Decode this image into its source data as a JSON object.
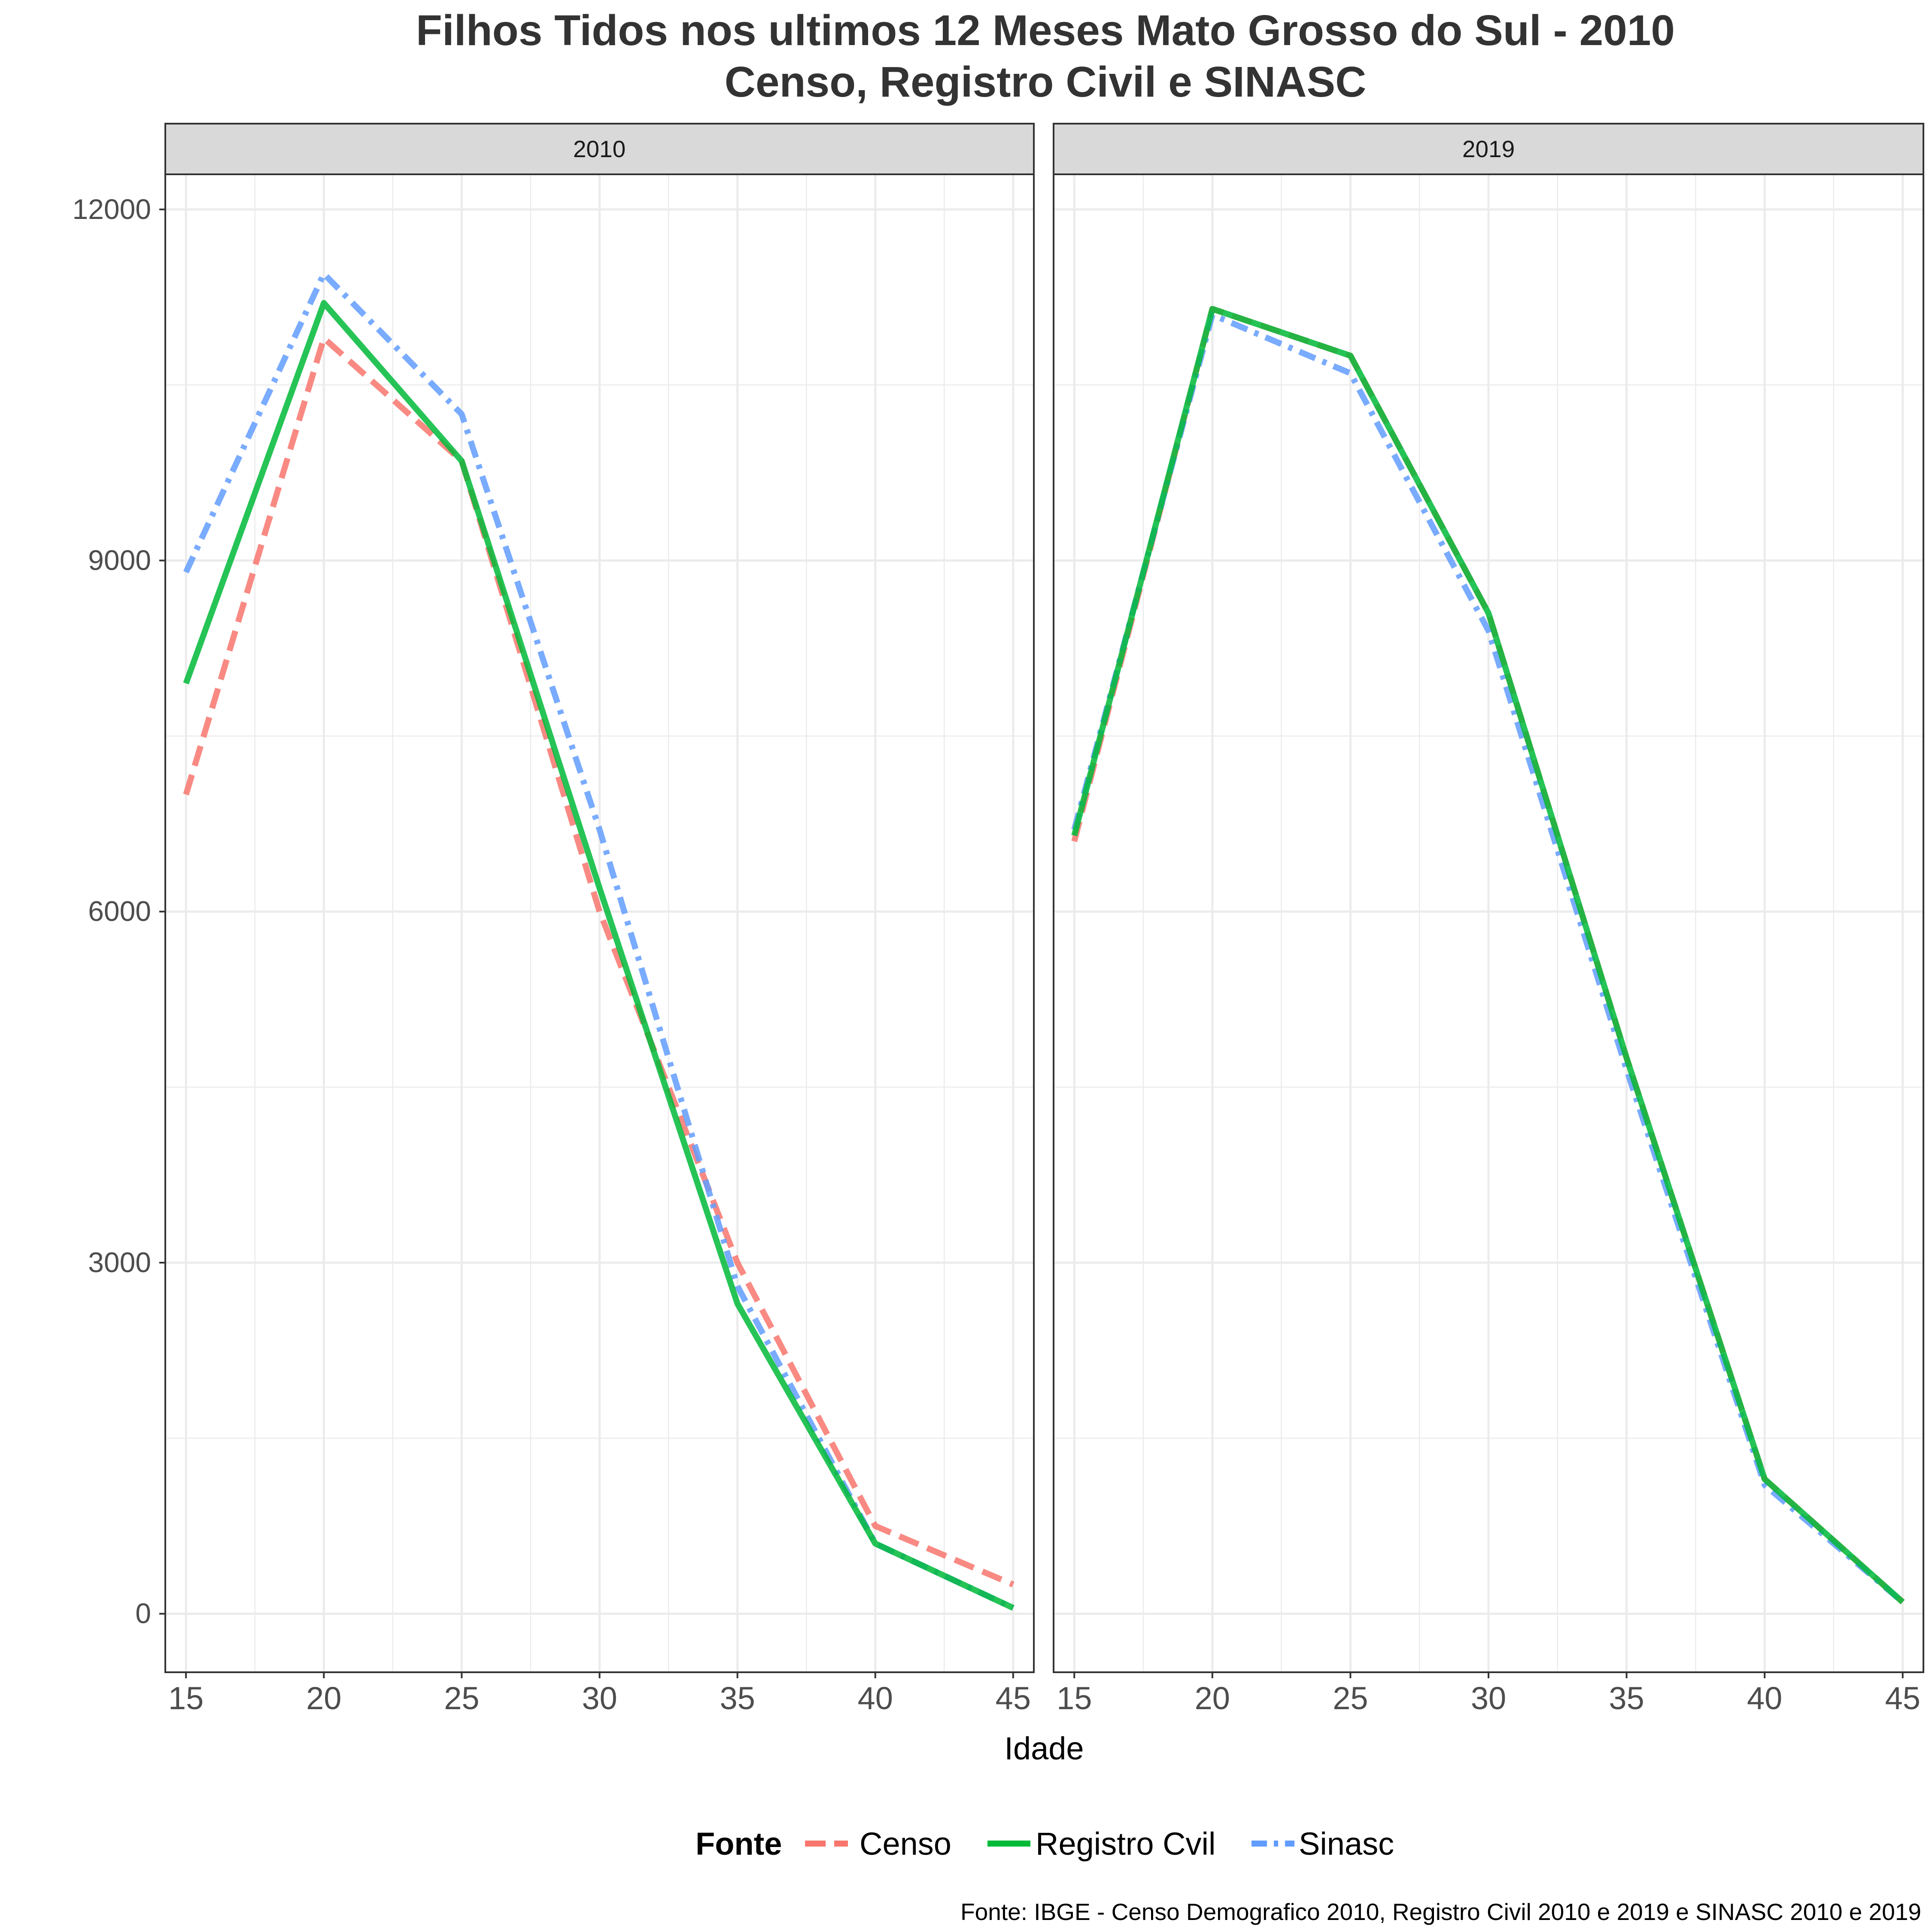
{
  "chart_data": {
    "type": "line",
    "title": "Filhos Tidos nos ultimos 12 Meses Mato Grosso do Sul - 2010",
    "subtitle": "Censo, Registro Civil e SINASC",
    "xlabel": "Idade",
    "ylabel": "",
    "caption": "Fonte: IBGE - Censo Demografico 2010, Registro Civil 2010 e 2019 e SINASC 2010 e 2019",
    "x": [
      15,
      20,
      25,
      30,
      35,
      40,
      45
    ],
    "xticks": [
      "15",
      "20",
      "25",
      "30",
      "35",
      "40",
      "45"
    ],
    "yticks": [
      "0",
      "3000",
      "6000",
      "9000",
      "12000"
    ],
    "ylim": [
      -500,
      12300
    ],
    "xlim": [
      14.25,
      45.75
    ],
    "grid": true,
    "legend": {
      "title": "Fonte",
      "position": "bottom",
      "entries": [
        "Censo",
        "Registro Cvil",
        "Sinasc"
      ]
    },
    "series_styles": [
      {
        "name": "Censo",
        "color": "#F8766D",
        "dash": "dashed"
      },
      {
        "name": "Registro Cvil",
        "color": "#00BA38",
        "dash": "solid"
      },
      {
        "name": "Sinasc",
        "color": "#619CFF",
        "dash": "dotdash"
      }
    ],
    "panels": [
      {
        "label": "2010",
        "series": [
          {
            "name": "Censo",
            "values": [
              7000,
              10900,
              9850,
              6000,
              3000,
              750,
              250
            ]
          },
          {
            "name": "Sinasc",
            "values": [
              8900,
              11450,
              10250,
              6700,
              2800,
              600,
              50
            ]
          },
          {
            "name": "Registro Cvil",
            "values": [
              7950,
              11200,
              9850,
              6200,
              2650,
              600,
              50
            ]
          }
        ]
      },
      {
        "label": "2019",
        "series": [
          {
            "name": "Censo",
            "values": [
              6600,
              11150,
              10750,
              8550,
              4750,
              1150,
              100
            ]
          },
          {
            "name": "Sinasc",
            "values": [
              6700,
              11100,
              10600,
              8400,
              4650,
              1100,
              100
            ]
          },
          {
            "name": "Registro Cvil",
            "values": [
              6650,
              11150,
              10750,
              8550,
              4750,
              1150,
              100
            ]
          }
        ]
      }
    ]
  }
}
